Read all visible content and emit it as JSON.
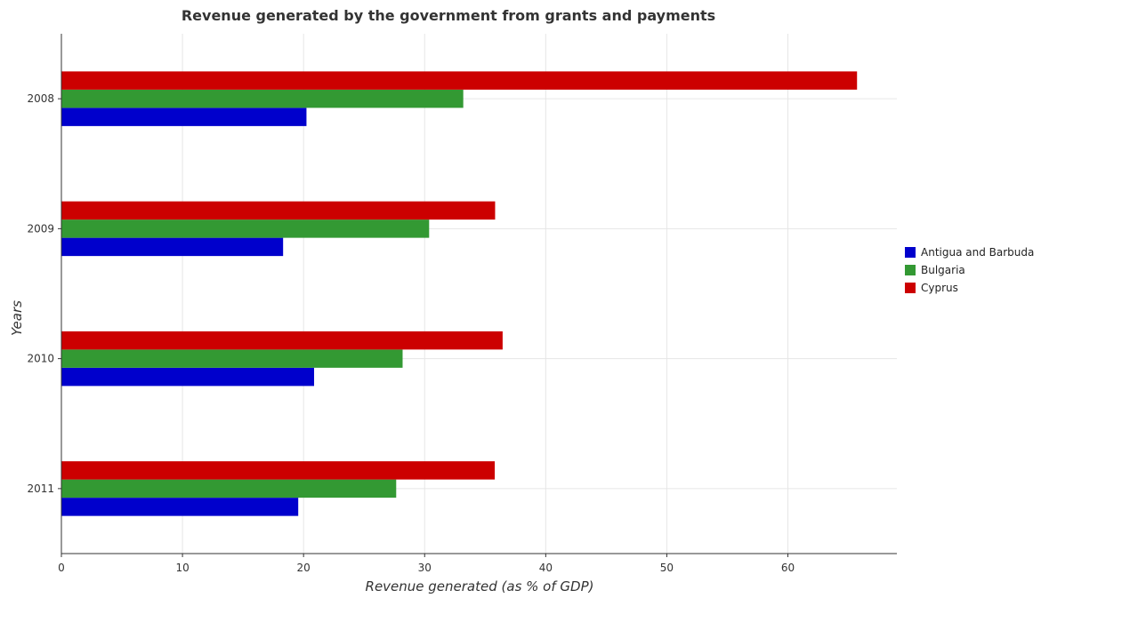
{
  "chart_data": {
    "type": "bar",
    "orientation": "horizontal",
    "title": "Revenue generated by the government from grants and payments",
    "xlabel": "Revenue generated (as % of GDP)",
    "ylabel": "Years",
    "categories": [
      "2008",
      "2009",
      "2010",
      "2011"
    ],
    "series": [
      {
        "name": "Antigua and Barbuda",
        "color": "#0000cc",
        "values": [
          20.24,
          18.31,
          20.87,
          19.56
        ]
      },
      {
        "name": "Bulgaria",
        "color": "#339933",
        "values": [
          33.19,
          30.37,
          28.18,
          27.65
        ]
      },
      {
        "name": "Cyprus",
        "color": "#cc0000",
        "values": [
          65.71,
          35.82,
          36.44,
          35.79
        ]
      }
    ],
    "xlim": [
      0,
      69
    ],
    "xticks": [
      "0",
      "10",
      "20",
      "30",
      "40",
      "50",
      "60"
    ],
    "grid": true,
    "legend_position": "right"
  }
}
